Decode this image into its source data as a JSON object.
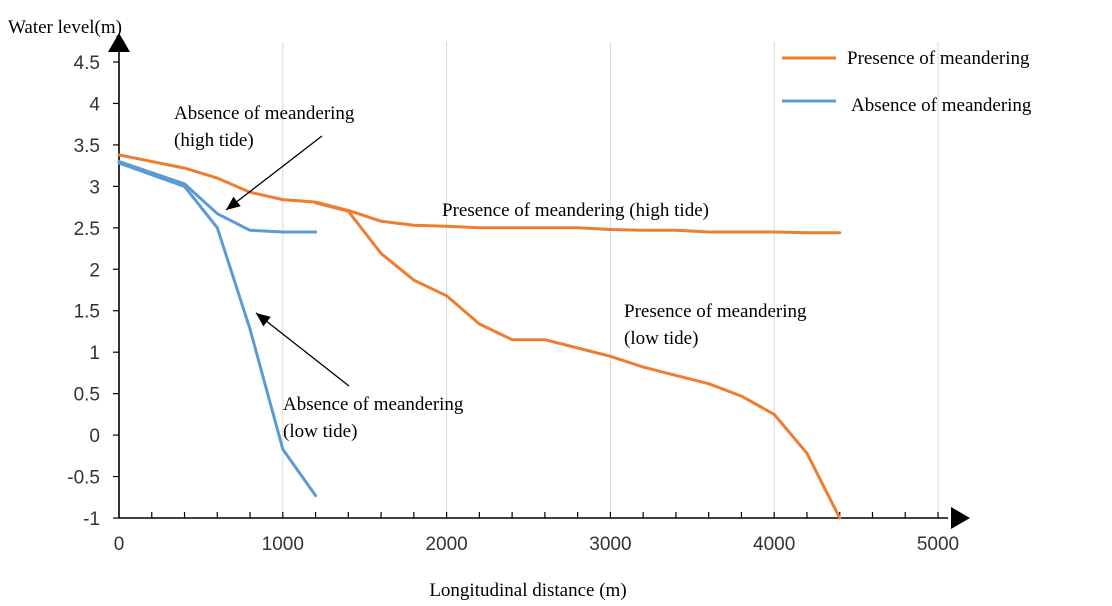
{
  "chart_data": {
    "type": "line",
    "xlabel": "Longitudinal distance (m)",
    "ylabel": "Water level(m)",
    "xlim": [
      0,
      5000
    ],
    "ylim": [
      -1,
      4.5
    ],
    "xticks": [
      "0",
      "1000",
      "2000",
      "3000",
      "4000",
      "5000"
    ],
    "yticks": [
      "4.5",
      "4",
      "3.5",
      "3",
      "2.5",
      "2",
      "1.5",
      "1",
      "0.5",
      "0",
      "-0.5",
      "-1"
    ],
    "grid": "vertical",
    "legend_position": "top-right",
    "legend": [
      {
        "label": "Presence of meandering",
        "color": "#ED7D31"
      },
      {
        "label": "Absence of meandering",
        "color": "#5B9BD5"
      }
    ],
    "series": [
      {
        "color": "#ED7D31",
        "x": [
          0,
          400,
          600,
          800,
          1000,
          1200,
          1400,
          1600,
          1800,
          2000,
          2200,
          2400,
          2600,
          2800,
          3000,
          3200,
          3400,
          3600,
          3800,
          4000,
          4200,
          4400
        ],
        "y": [
          3.38,
          3.22,
          3.1,
          2.93,
          2.84,
          2.81,
          2.71,
          2.58,
          2.53,
          2.52,
          2.5,
          2.5,
          2.5,
          2.5,
          2.48,
          2.47,
          2.47,
          2.45,
          2.45,
          2.45,
          2.44,
          2.44
        ]
      },
      {
        "color": "#ED7D31",
        "x": [
          1200,
          1400,
          1600,
          1800,
          2000,
          2200,
          2400,
          2600,
          2800,
          3000,
          3200,
          3400,
          3600,
          3800,
          4000,
          4200,
          4400
        ],
        "y": [
          2.8,
          2.7,
          2.19,
          1.87,
          1.68,
          1.34,
          1.15,
          1.15,
          1.05,
          0.95,
          0.82,
          0.72,
          0.62,
          0.47,
          0.25,
          -0.22,
          -1.0
        ]
      },
      {
        "color": "#5B9BD5",
        "x": [
          0,
          400,
          600,
          800,
          1000,
          1200
        ],
        "y": [
          3.3,
          3.03,
          2.67,
          2.47,
          2.45,
          2.45
        ]
      },
      {
        "color": "#5B9BD5",
        "x": [
          0,
          400,
          600,
          800,
          1000,
          1200
        ],
        "y": [
          3.28,
          3.0,
          2.5,
          1.28,
          -0.17,
          -0.73
        ]
      }
    ],
    "annotations": [
      {
        "lines": [
          "Absence of meandering",
          "(high tide)"
        ]
      },
      {
        "lines": [
          "Presence of meandering (high tide)"
        ]
      },
      {
        "lines": [
          "Presence of meandering",
          "(low tide)"
        ]
      },
      {
        "lines": [
          "Absence of meandering",
          "(low tide)"
        ]
      }
    ]
  }
}
